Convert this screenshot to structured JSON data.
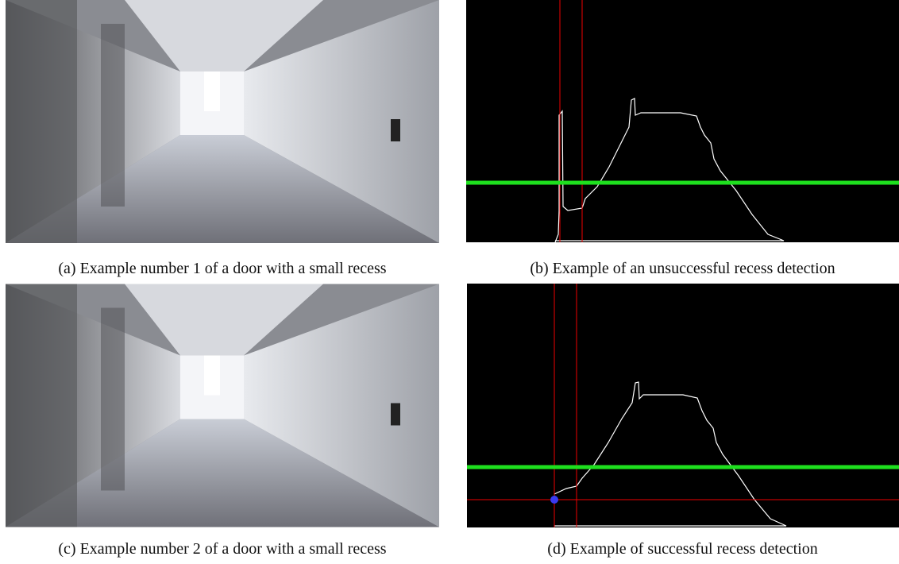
{
  "figures": [
    {
      "caption": "(a) Example number 1 of a door with a small recess"
    },
    {
      "caption": "(b) Example of an unsuccessful recess detection"
    },
    {
      "caption": "(c) Example number 2 of a door with a small recess"
    },
    {
      "caption": "(d) Example of successful recess detection"
    }
  ]
}
